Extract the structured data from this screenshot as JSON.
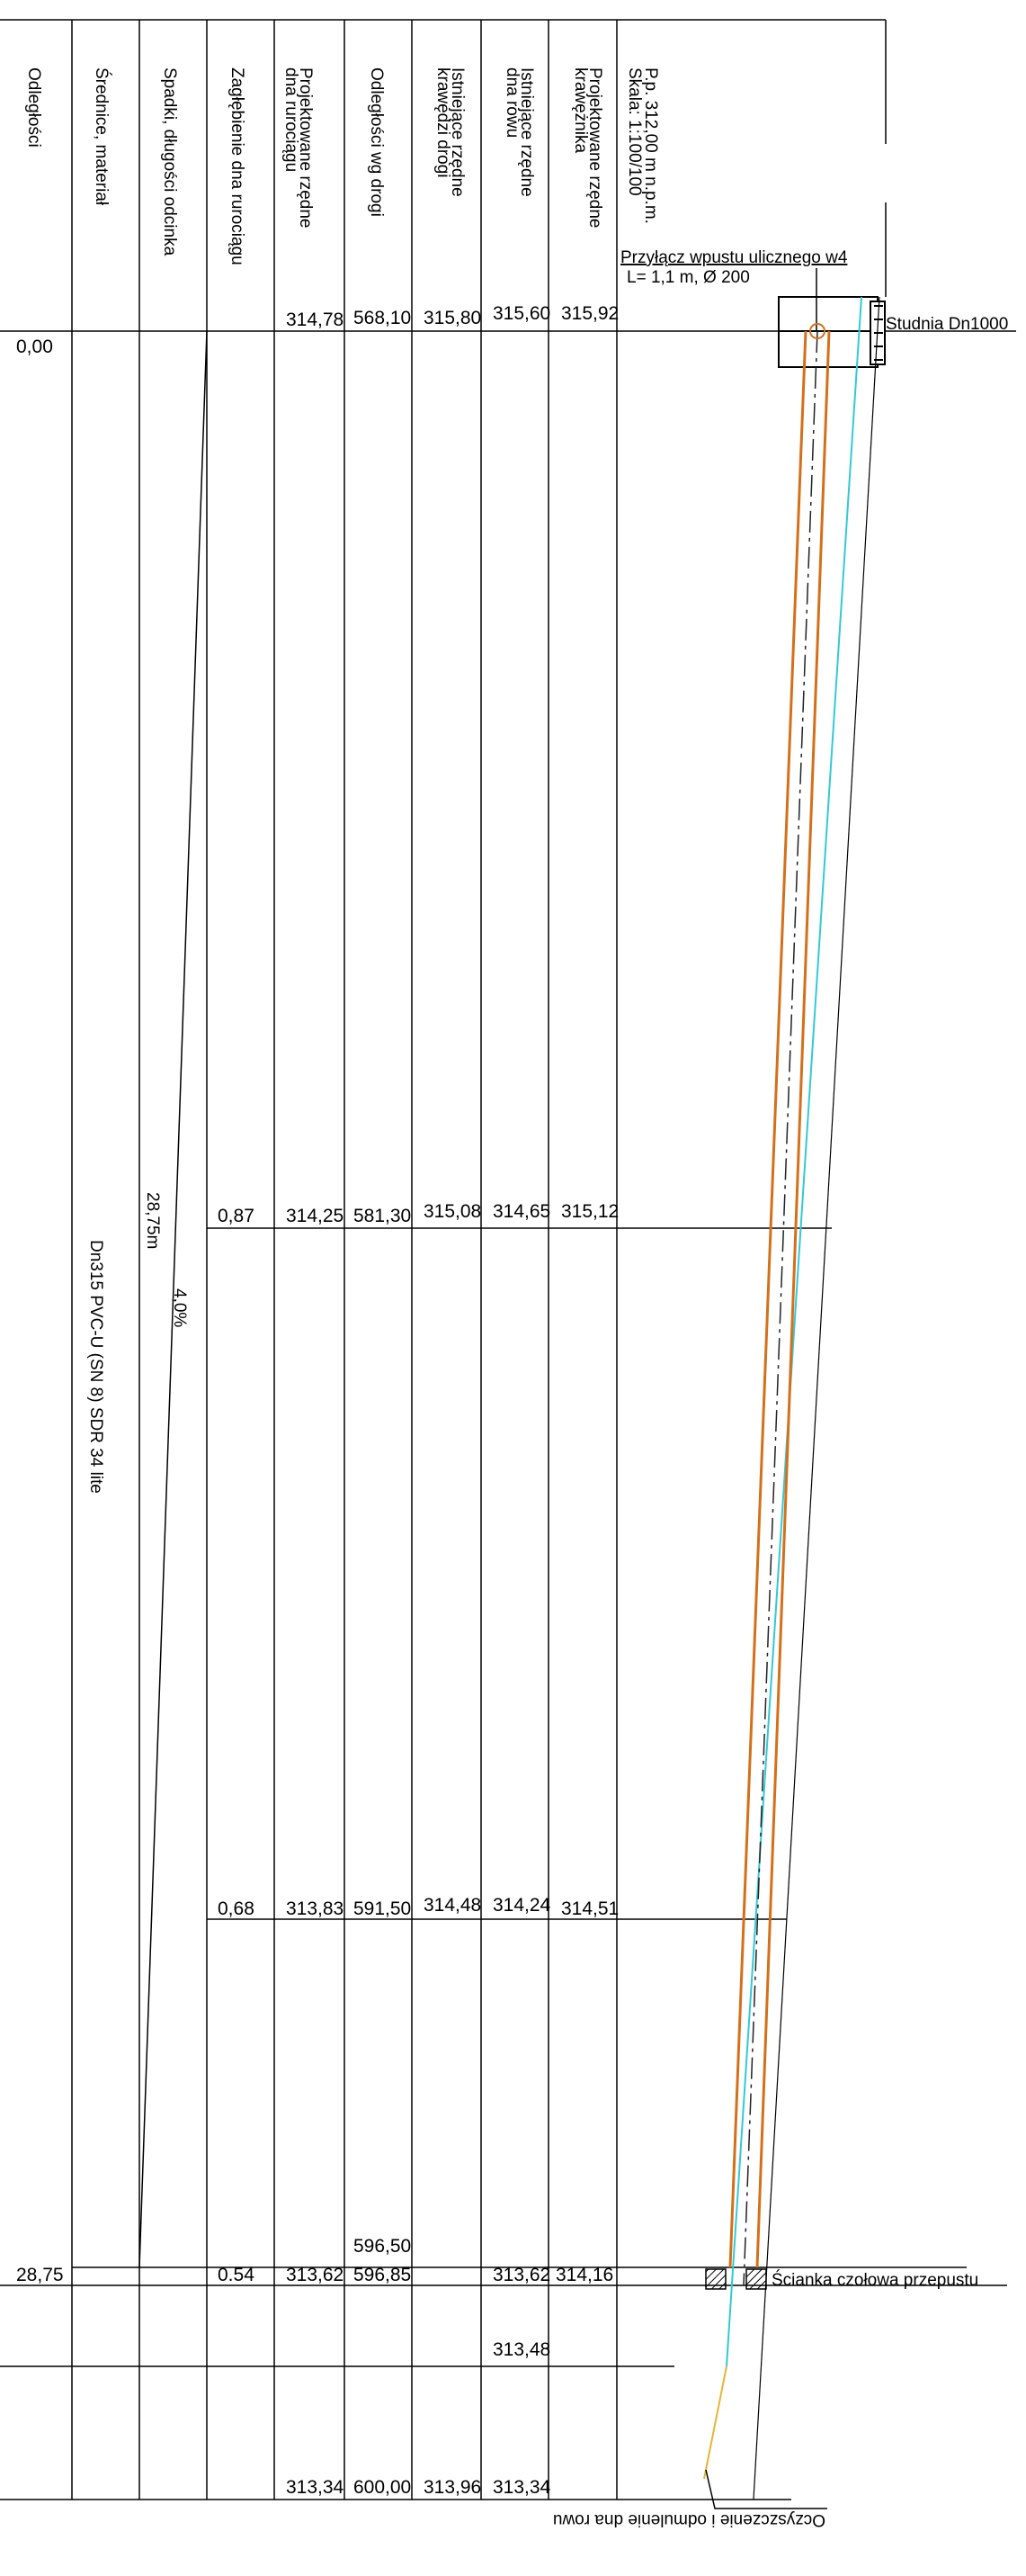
{
  "header": {
    "labels": [
      "Odległości",
      "Średnice, materiał",
      "Spadki, długości odcinka",
      "Zagłębienie dna rurociągu",
      "Projektowane rzędne",
      "dna rurociągu",
      "Odległości wg drogi",
      "Istniejące rzędne",
      "krawędzi drogi",
      "Istniejące rzędne",
      "dna rowu",
      "Projektowane rzędne",
      "krawężnika"
    ],
    "datum": "P.p. 312,00 m n.p.m.",
    "scale": "Skala: 1:100/100"
  },
  "rows": {
    "r1": [
      "314,78",
      "568,10",
      "315,80",
      "315,60",
      "315,92"
    ],
    "r2": [
      "0,87",
      "314,25",
      "581,30",
      "315,08",
      "314,65",
      "315,12"
    ],
    "r3": [
      "0,68",
      "313,83",
      "591,50",
      "314,48",
      "314,24",
      "314,51"
    ],
    "r4": [
      "0.54",
      "313,62",
      "596,85",
      "313,62",
      "314,16"
    ],
    "r4_extra": "596,50",
    "r5_extra": "313,48",
    "r6": [
      "313,34",
      "600,00",
      "313,96",
      "313,34"
    ]
  },
  "distances": {
    "start": "0,00",
    "end": "28,75"
  },
  "segment": {
    "material": "Dn315 PVC-U (SN 8) SDR 34 lite",
    "length": "28,75m",
    "slope": "4,0%"
  },
  "annotations": {
    "connection": "Przyłącz wpustu ulicznego w4",
    "connection_params": "L= 1,1 m, Ø 200",
    "well": "Studnia Dn1000",
    "headwall": "Ścianka czołowa przepustu",
    "ditch": "Oczyszczenie i odmulenie dna rowu"
  },
  "colors": {
    "pipe": "#d4701a",
    "ditch_line": "#33c9d6",
    "ditch_extension": "#e6b53a",
    "lines": "#000000"
  }
}
